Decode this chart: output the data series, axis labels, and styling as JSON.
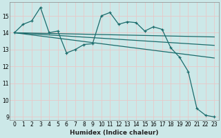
{
  "xlabel": "Humidex (Indice chaleur)",
  "bg_color": "#cce8e8",
  "grid_color": "#e8c8c8",
  "line_color": "#1a6b6b",
  "xlim": [
    -0.5,
    23.5
  ],
  "ylim": [
    8.8,
    15.8
  ],
  "yticks": [
    9,
    10,
    11,
    12,
    13,
    14,
    15
  ],
  "xticks": [
    0,
    1,
    2,
    3,
    4,
    5,
    6,
    7,
    8,
    9,
    10,
    11,
    12,
    13,
    14,
    15,
    16,
    17,
    18,
    19,
    20,
    21,
    22,
    23
  ],
  "main_x": [
    0,
    1,
    2,
    3,
    4,
    5,
    6,
    7,
    8,
    9,
    10,
    11,
    12,
    13,
    14,
    15,
    16,
    17,
    18,
    19,
    20,
    21,
    22,
    23
  ],
  "main_y": [
    14.0,
    14.5,
    14.7,
    15.5,
    14.0,
    14.1,
    12.8,
    13.0,
    13.3,
    13.35,
    15.0,
    15.2,
    14.5,
    14.65,
    14.6,
    14.1,
    14.35,
    14.2,
    13.1,
    12.55,
    11.7,
    9.5,
    9.1,
    9.0
  ],
  "line2_x": [
    0,
    23
  ],
  "line2_y": [
    14.0,
    13.75
  ],
  "line3_x": [
    0,
    23
  ],
  "line3_y": [
    14.0,
    13.25
  ],
  "line4_x": [
    0,
    23
  ],
  "line4_y": [
    14.0,
    12.5
  ]
}
